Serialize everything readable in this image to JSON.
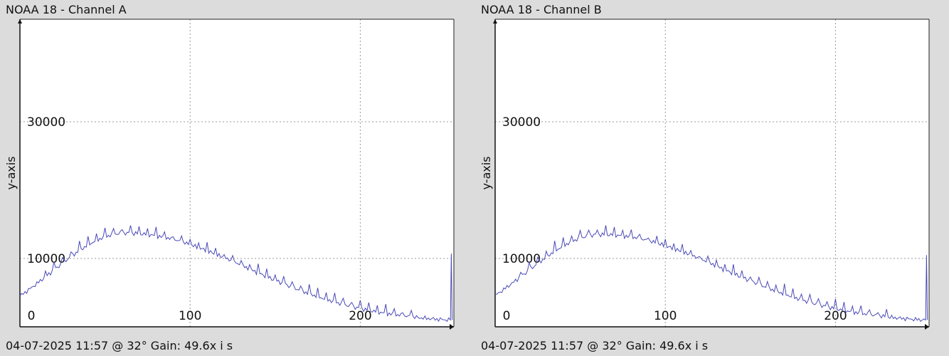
{
  "panels": [
    {
      "title": "NOAA 18 - Channel A",
      "footer": "04-07-2025 11:57 @ 32° Gain: 49.6",
      "xaxis_label": "x i s",
      "chart_data": {
        "type": "line",
        "title": "NOAA 18 - Channel A",
        "ylabel": "y-axis",
        "xlim": [
          0,
          255
        ],
        "ylim": [
          0,
          45000
        ],
        "x_ticks": [
          0,
          100,
          200
        ],
        "y_ticks": [
          10000,
          30000
        ],
        "grid": true,
        "series_color": "#4a4ab8",
        "peak_x": 62,
        "peak_y": 13700,
        "start_y": 4500,
        "end_y": 1000,
        "spike_at_end": 10700
      }
    },
    {
      "title": "NOAA 18 - Channel B",
      "footer": "04-07-2025 11:57 @ 32° Gain: 49.6",
      "xaxis_label": "x i s",
      "chart_data": {
        "type": "line",
        "title": "NOAA 18 - Channel B",
        "ylabel": "y-axis",
        "xlim": [
          0,
          255
        ],
        "ylim": [
          0,
          45000
        ],
        "x_ticks": [
          0,
          100,
          200
        ],
        "y_ticks": [
          10000,
          30000
        ],
        "grid": true,
        "series_color": "#4a4ab8",
        "peak_x": 62,
        "peak_y": 13500,
        "start_y": 4600,
        "end_y": 1000,
        "spike_at_end": 10500
      }
    }
  ]
}
